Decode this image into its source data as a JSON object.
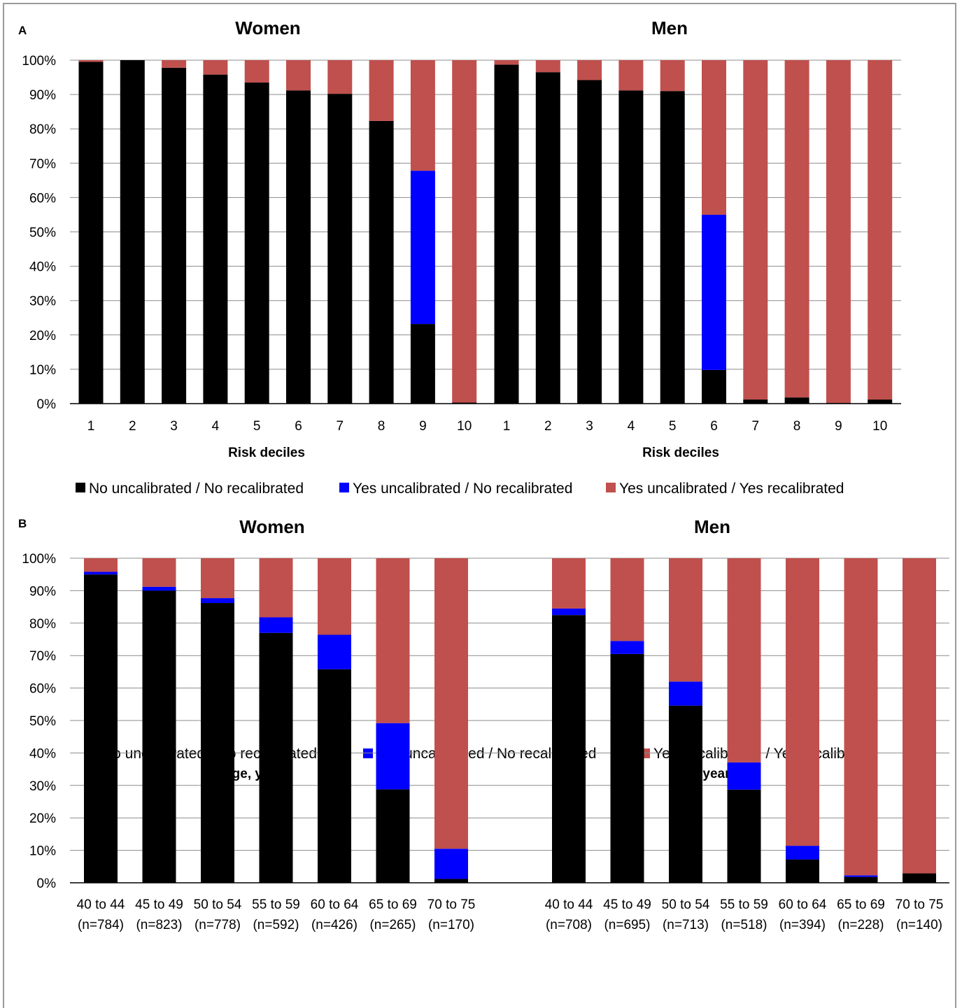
{
  "chart_data": [
    {
      "panel_label": "A",
      "type": "bar",
      "stacked": true,
      "ylim": [
        0,
        100
      ],
      "y_ticks": [
        "0%",
        "10%",
        "20%",
        "30%",
        "40%",
        "50%",
        "60%",
        "70%",
        "80%",
        "90%",
        "100%"
      ],
      "colors": [
        "#000000",
        "#0000ff",
        "#c0504d"
      ],
      "legend": [
        "No uncalibrated / No recalibrated",
        "Yes uncalibrated / No recalibrated",
        "Yes uncalibrated / Yes recalibrated"
      ],
      "groups": [
        {
          "title": "Women",
          "xlabel": "Risk deciles",
          "categories": [
            "1",
            "2",
            "3",
            "4",
            "5",
            "6",
            "7",
            "8",
            "9",
            "10"
          ],
          "series": [
            {
              "name": "No uncalibrated / No recalibrated",
              "values": [
                99.5,
                100,
                97.8,
                95.8,
                93.5,
                91.2,
                90.2,
                82.3,
                23.2,
                0.3
              ]
            },
            {
              "name": "Yes uncalibrated / No recalibrated",
              "values": [
                0,
                0,
                0,
                0,
                0,
                0,
                0,
                0,
                44.6,
                0
              ]
            },
            {
              "name": "Yes uncalibrated / Yes recalibrated",
              "values": [
                0.5,
                0,
                2.2,
                4.2,
                6.5,
                8.8,
                9.8,
                17.7,
                32.2,
                99.7
              ]
            }
          ]
        },
        {
          "title": "Men",
          "xlabel": "Risk deciles",
          "categories": [
            "1",
            "2",
            "3",
            "4",
            "5",
            "6",
            "7",
            "8",
            "9",
            "10"
          ],
          "series": [
            {
              "name": "No uncalibrated / No recalibrated",
              "values": [
                98.7,
                96.5,
                94.2,
                91.2,
                91.0,
                9.8,
                1.2,
                1.8,
                0.2,
                1.2
              ]
            },
            {
              "name": "Yes uncalibrated / No recalibrated",
              "values": [
                0,
                0,
                0,
                0,
                0,
                45.2,
                0,
                0,
                0,
                0
              ]
            },
            {
              "name": "Yes uncalibrated / Yes recalibrated",
              "values": [
                1.3,
                3.5,
                5.8,
                8.8,
                9.0,
                45.0,
                98.8,
                98.2,
                99.8,
                98.8
              ]
            }
          ]
        }
      ]
    },
    {
      "panel_label": "B",
      "type": "bar",
      "stacked": true,
      "ylim": [
        0,
        100
      ],
      "y_ticks": [
        "0%",
        "10%",
        "20%",
        "30%",
        "40%",
        "50%",
        "60%",
        "70%",
        "80%",
        "90%",
        "100%"
      ],
      "colors": [
        "#000000",
        "#0000ff",
        "#c0504d"
      ],
      "legend": [
        "No uncalibrated / No recalibrated",
        "Yes uncalibrated / No recalibrated",
        "Yes uncalibrated / Yes recalibrated"
      ],
      "groups": [
        {
          "title": "Women",
          "xlabel": "Age, years",
          "categories": [
            "40 to 44",
            "45 to 49",
            "50 to 54",
            "55 to 59",
            "60 to 64",
            "65 to 69",
            "70 to 75"
          ],
          "category_n": [
            "(n=784)",
            "(n=823)",
            "(n=778)",
            "(n=592)",
            "(n=426)",
            "(n=265)",
            "(n=170)"
          ],
          "series": [
            {
              "name": "No uncalibrated / No recalibrated",
              "values": [
                95.0,
                90.0,
                86.2,
                77.0,
                65.8,
                28.8,
                1.2
              ]
            },
            {
              "name": "Yes uncalibrated / No recalibrated",
              "values": [
                0.8,
                1.2,
                1.5,
                4.8,
                10.6,
                20.4,
                9.3
              ]
            },
            {
              "name": "Yes uncalibrated / Yes recalibrated",
              "values": [
                4.2,
                8.8,
                12.3,
                18.2,
                23.6,
                50.8,
                89.5
              ]
            }
          ]
        },
        {
          "title": "Men",
          "xlabel": "Age, years",
          "categories": [
            "40 to 44",
            "45 to 49",
            "50 to 54",
            "55 to 59",
            "60 to 64",
            "65 to 69",
            "70 to 75"
          ],
          "category_n": [
            "(n=708)",
            "(n=695)",
            "(n=713)",
            "(n=518)",
            "(n=394)",
            "(n=228)",
            "(n=140)"
          ],
          "series": [
            {
              "name": "No uncalibrated / No recalibrated",
              "values": [
                82.5,
                70.5,
                54.6,
                28.7,
                7.2,
                1.8,
                2.9
              ]
            },
            {
              "name": "Yes uncalibrated / No recalibrated",
              "values": [
                2.0,
                4.0,
                7.4,
                8.4,
                4.2,
                0.5,
                0
              ]
            },
            {
              "name": "Yes uncalibrated / Yes recalibrated",
              "values": [
                15.5,
                25.5,
                38.0,
                62.9,
                88.6,
                97.7,
                97.1
              ]
            }
          ]
        }
      ]
    }
  ]
}
